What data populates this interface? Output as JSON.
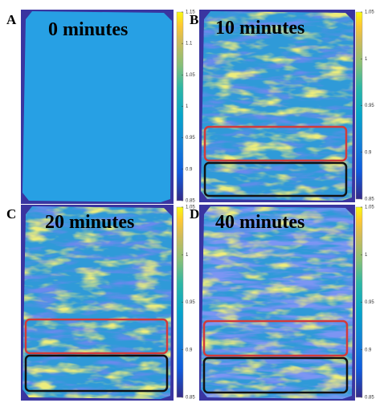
{
  "panels": [
    {
      "label": "A",
      "title": "0 minutes",
      "colorbar": {
        "lim": [
          0.85,
          1.15
        ],
        "ticks": [
          0.85,
          0.9,
          0.95,
          1,
          1.05,
          1.1,
          1.15
        ]
      }
    },
    {
      "label": "B",
      "title": "10 minutes",
      "colorbar": {
        "lim": [
          0.85,
          1.05
        ],
        "ticks": [
          0.85,
          0.9,
          0.95,
          1,
          1.05
        ]
      }
    },
    {
      "label": "C",
      "title": "20 minutes",
      "colorbar": {
        "lim": [
          0.85,
          1.05
        ],
        "ticks": [
          0.85,
          0.9,
          0.95,
          1,
          1.05
        ]
      }
    },
    {
      "label": "D",
      "title": "40 minutes",
      "colorbar": {
        "lim": [
          0.85,
          1.05
        ],
        "ticks": [
          0.85,
          0.9,
          0.95,
          1,
          1.05
        ]
      }
    }
  ]
}
